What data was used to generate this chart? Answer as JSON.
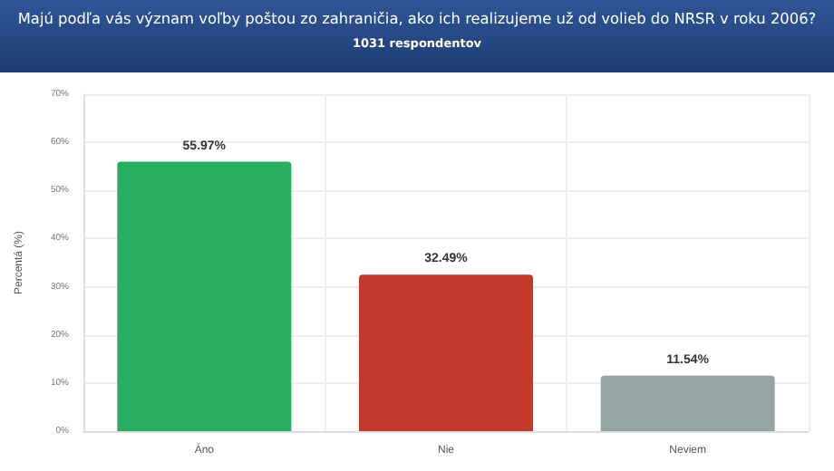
{
  "chart_data": {
    "type": "bar",
    "title": "Majú podľa vás význam voľby poštou zo zahraničia, ako ich realizujeme už od volieb do NRSR v roku 2006?",
    "subtitle": "1031 respondentov",
    "ylabel": "Percentá (%)",
    "categories": [
      "Áno",
      "Nie",
      "Neviem"
    ],
    "values": [
      55.97,
      32.49,
      11.54
    ],
    "colors": [
      "#27ae60",
      "#c0392b",
      "#95a5a6"
    ],
    "value_labels": [
      "55.97%",
      "32.49%",
      "11.54%"
    ],
    "ylim": [
      0,
      70
    ],
    "yticks": [
      {
        "value": 0,
        "label": "0%"
      },
      {
        "value": 10,
        "label": "10%"
      },
      {
        "value": 20,
        "label": "20%"
      },
      {
        "value": 30,
        "label": "30%"
      },
      {
        "value": 40,
        "label": "40%"
      },
      {
        "value": 50,
        "label": "50%"
      },
      {
        "value": 60,
        "label": "60%"
      },
      {
        "value": 70,
        "label": "70%"
      }
    ],
    "grid": true
  }
}
